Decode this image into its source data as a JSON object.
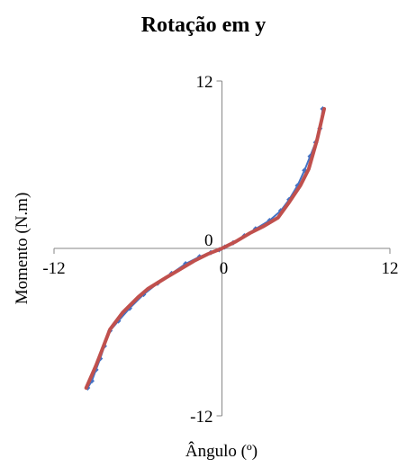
{
  "chart_data": {
    "type": "scatter",
    "title": "Rotação em y",
    "xlabel": "Ângulo (º)",
    "ylabel": "Momento (N.m)",
    "xlim": [
      -12,
      12
    ],
    "ylim": [
      -12,
      12
    ],
    "grid": false,
    "legend": "none",
    "x_ticks": [
      "-12",
      "0",
      "12"
    ],
    "y_ticks": [
      "-12",
      "0",
      "12"
    ],
    "colors": {
      "measured": "#4472c4",
      "fit": "#c0504d",
      "axis": "#868686"
    },
    "series": [
      {
        "style": "markers-line",
        "x": [
          -9.6,
          -9.3,
          -9.0,
          -8.7,
          -8.4,
          -8.0,
          -7.4,
          -6.6,
          -5.6,
          -4.6,
          -3.6,
          -2.6,
          -1.6,
          -0.8,
          -0.2,
          0.2,
          0.8,
          1.6,
          2.4,
          3.4,
          4.2,
          4.8,
          5.4,
          5.9,
          6.3,
          6.7,
          7.0,
          7.2
        ],
        "y": [
          -10.0,
          -9.5,
          -8.7,
          -7.9,
          -7.0,
          -5.9,
          -5.2,
          -4.3,
          -3.3,
          -2.5,
          -1.8,
          -1.1,
          -0.6,
          -0.3,
          -0.1,
          0.1,
          0.4,
          0.9,
          1.4,
          2.0,
          2.7,
          3.5,
          4.5,
          5.6,
          6.6,
          7.6,
          8.6,
          10.0
        ]
      },
      {
        "style": "line",
        "x": [
          -9.7,
          -9.0,
          -8.0,
          -7.1,
          -6.0,
          -5.3,
          -4.0,
          -3.0,
          -2.0,
          -1.0,
          0.0,
          1.0,
          2.0,
          3.0,
          4.0,
          4.8,
          5.6,
          6.2,
          6.8,
          7.3
        ],
        "y": [
          -10.0,
          -8.4,
          -5.8,
          -4.6,
          -3.5,
          -2.9,
          -2.1,
          -1.5,
          -0.9,
          -0.4,
          0.0,
          0.5,
          1.1,
          1.6,
          2.2,
          3.3,
          4.5,
          5.7,
          7.8,
          10.0
        ]
      }
    ]
  }
}
